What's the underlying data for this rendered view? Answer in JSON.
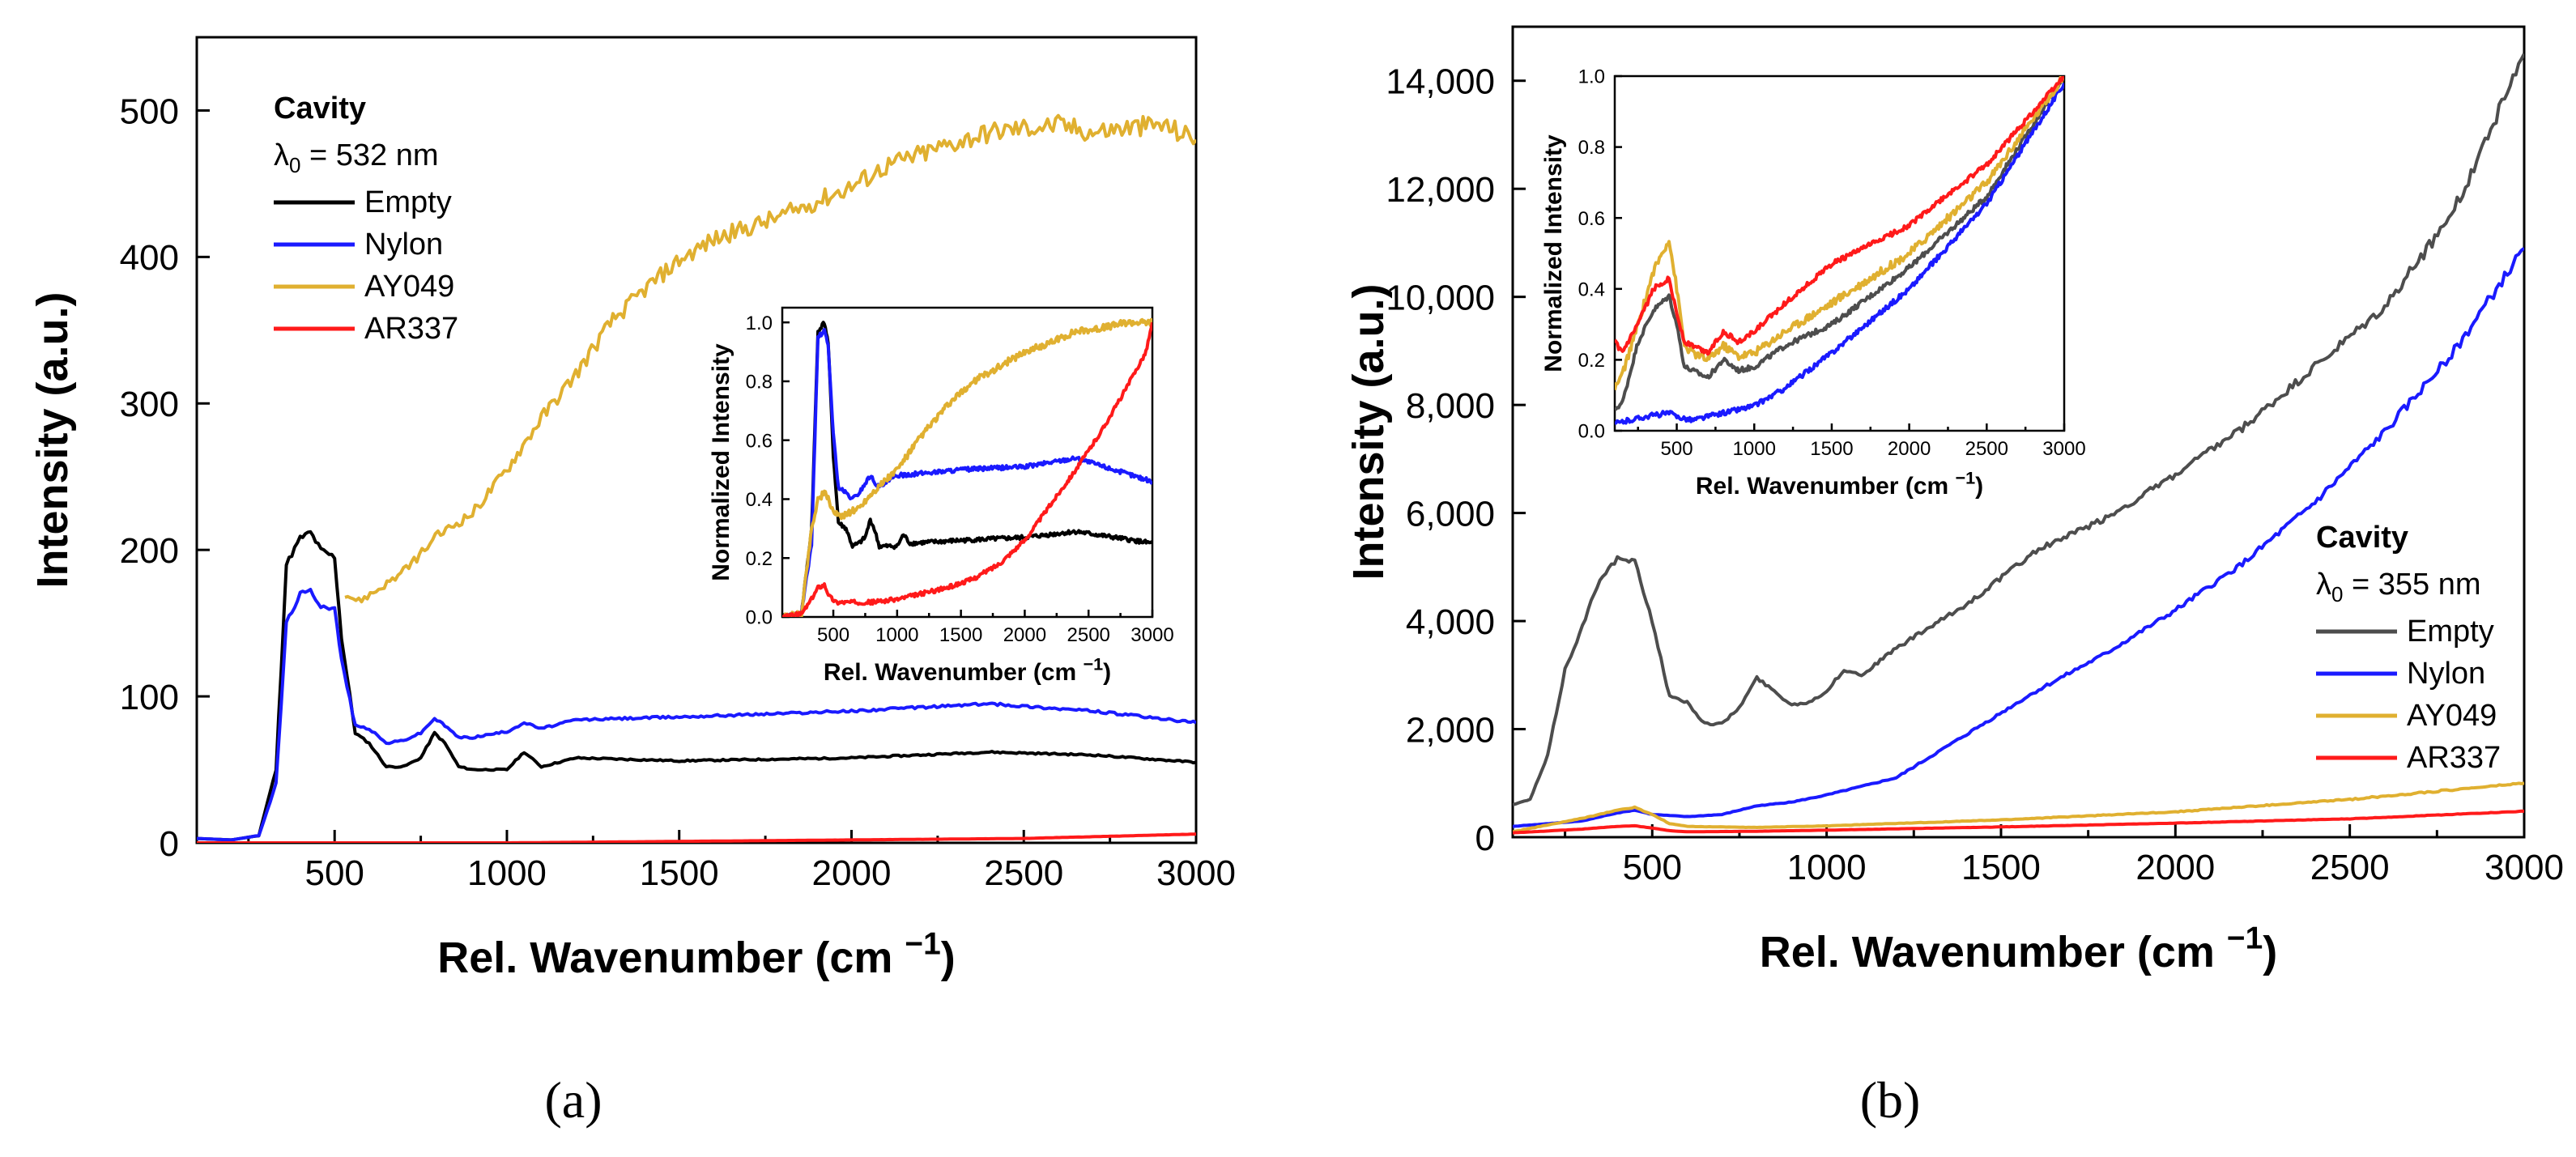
{
  "colors": {
    "empty_a": "#000000",
    "empty_b": "#4d4d4d",
    "nylon": "#1a1aff",
    "ay049": "#e0b030",
    "ar337": "#ff1a1a"
  },
  "chart_data": [
    {
      "panel": "a",
      "caption": "(a)",
      "type": "line",
      "xlabel": "Rel. Wavenumber (cm",
      "xlabel_sup": "−1",
      "xlabel_close": ")",
      "ylabel": "Intensity (a.u.)",
      "xlim": [
        100,
        3000
      ],
      "ylim": [
        0,
        550
      ],
      "xticks": [
        500,
        1000,
        1500,
        2000,
        2500,
        3000
      ],
      "xtick_labels": [
        "500",
        "1000",
        "1500",
        "2000",
        "2500",
        "3000"
      ],
      "yticks": [
        0,
        100,
        200,
        300,
        400,
        500
      ],
      "ytick_labels": [
        "0",
        "100",
        "200",
        "300",
        "400",
        "500"
      ],
      "legend": {
        "position": "top-left",
        "title": "Cavity",
        "subtitle_prefix": "λ",
        "subtitle_sub": "0",
        "subtitle_suffix": " = 532 nm",
        "entries": [
          "Empty",
          "Nylon",
          "AY049",
          "AR337"
        ]
      },
      "series": [
        {
          "name": "Empty",
          "x": [
            100,
            200,
            280,
            330,
            360,
            400,
            430,
            460,
            500,
            520,
            560,
            600,
            650,
            700,
            750,
            790,
            820,
            860,
            900,
            1000,
            1050,
            1100,
            1200,
            1500,
            2000,
            2400,
            2700,
            3000
          ],
          "y": [
            3,
            2,
            5,
            50,
            190,
            208,
            212,
            200,
            195,
            140,
            75,
            68,
            52,
            52,
            58,
            75,
            68,
            52,
            50,
            50,
            62,
            52,
            58,
            56,
            58,
            62,
            60,
            55
          ]
        },
        {
          "name": "Nylon",
          "x": [
            100,
            200,
            280,
            330,
            360,
            400,
            430,
            460,
            500,
            520,
            560,
            600,
            650,
            700,
            750,
            790,
            820,
            860,
            900,
            1000,
            1050,
            1100,
            1200,
            1500,
            2000,
            2400,
            2700,
            3000
          ],
          "y": [
            3,
            2,
            5,
            40,
            150,
            170,
            172,
            162,
            160,
            125,
            80,
            78,
            68,
            70,
            75,
            85,
            80,
            72,
            72,
            76,
            82,
            78,
            84,
            86,
            90,
            95,
            90,
            82
          ]
        },
        {
          "name": "AY049",
          "x": [
            530,
            570,
            620,
            700,
            800,
            900,
            1000,
            1100,
            1200,
            1300,
            1400,
            1500,
            1600,
            1700,
            1800,
            1900,
            2000,
            2100,
            2200,
            2300,
            2400,
            2500,
            2600,
            2700,
            2800,
            2900,
            3000
          ],
          "y": [
            170,
            165,
            172,
            185,
            210,
            225,
            255,
            290,
            320,
            355,
            378,
            398,
            412,
            420,
            428,
            438,
            448,
            462,
            470,
            478,
            485,
            488,
            490,
            485,
            488,
            490,
            480
          ]
        },
        {
          "name": "AR337",
          "x": [
            100,
            500,
            1000,
            1500,
            2000,
            2500,
            3000
          ],
          "y": [
            0,
            0,
            0,
            1,
            2,
            3,
            6
          ]
        }
      ],
      "inset": {
        "type": "line",
        "xlabel": "Rel. Wavenumber (cm",
        "xlabel_sup": "−1",
        "xlabel_close": ")",
        "ylabel": "Normalized Intensity",
        "xlim": [
          100,
          3000
        ],
        "ylim": [
          0,
          1.05
        ],
        "xticks": [
          500,
          1000,
          1500,
          2000,
          2500,
          3000
        ],
        "xtick_labels": [
          "500",
          "1000",
          "1500",
          "2000",
          "2500",
          "3000"
        ],
        "yticks": [
          0.0,
          0.2,
          0.4,
          0.6,
          0.8,
          1.0
        ],
        "ytick_labels": [
          "0.0",
          "0.2",
          "0.4",
          "0.6",
          "0.8",
          "1.0"
        ],
        "series": [
          {
            "name": "Empty",
            "x": [
              100,
              250,
              330,
              380,
              430,
              460,
              500,
              540,
              600,
              650,
              700,
              750,
              790,
              820,
              860,
              1000,
              1050,
              1100,
              1500,
              2000,
              2400,
              2700,
              3000
            ],
            "y": [
              0.0,
              0.01,
              0.3,
              0.97,
              1.0,
              0.93,
              0.55,
              0.32,
              0.3,
              0.24,
              0.25,
              0.27,
              0.33,
              0.3,
              0.24,
              0.24,
              0.28,
              0.25,
              0.26,
              0.27,
              0.29,
              0.27,
              0.25
            ]
          },
          {
            "name": "Nylon",
            "x": [
              100,
              250,
              330,
              380,
              430,
              460,
              500,
              540,
              600,
              650,
              700,
              790,
              820,
              860,
              1000,
              1500,
              2000,
              2400,
              2700,
              3000
            ],
            "y": [
              0.0,
              0.01,
              0.25,
              0.95,
              0.97,
              0.92,
              0.62,
              0.44,
              0.42,
              0.4,
              0.42,
              0.48,
              0.46,
              0.44,
              0.48,
              0.5,
              0.51,
              0.54,
              0.5,
              0.46
            ]
          },
          {
            "name": "AY049",
            "x": [
              100,
              250,
              330,
              380,
              430,
              460,
              500,
              540,
              600,
              700,
              800,
              900,
              1000,
              1200,
              1400,
              1600,
              1800,
              2000,
              2200,
              2400,
              2600,
              2800,
              3000
            ],
            "y": [
              0.0,
              0.01,
              0.3,
              0.4,
              0.42,
              0.4,
              0.36,
              0.34,
              0.35,
              0.37,
              0.42,
              0.46,
              0.5,
              0.62,
              0.72,
              0.8,
              0.85,
              0.9,
              0.93,
              0.97,
              0.98,
              1.0,
              1.0
            ]
          },
          {
            "name": "AR337",
            "x": [
              100,
              250,
              330,
              380,
              430,
              470,
              520,
              600,
              800,
              1000,
              1200,
              1400,
              1600,
              1800,
              2000,
              2200,
              2400,
              2600,
              2800,
              2950,
              3000
            ],
            "y": [
              0.0,
              0.01,
              0.06,
              0.1,
              0.11,
              0.07,
              0.05,
              0.05,
              0.05,
              0.06,
              0.08,
              0.1,
              0.13,
              0.18,
              0.26,
              0.38,
              0.5,
              0.63,
              0.78,
              0.9,
              1.0
            ]
          }
        ]
      }
    },
    {
      "panel": "b",
      "caption": "(b)",
      "type": "line",
      "xlabel": "Rel. Wavenumber (cm",
      "xlabel_sup": "−1",
      "xlabel_close": ")",
      "ylabel": "Intensity (a.u.)",
      "xlim": [
        100,
        3000
      ],
      "ylim": [
        0,
        15000
      ],
      "xticks": [
        500,
        1000,
        1500,
        2000,
        2500,
        3000
      ],
      "xtick_labels": [
        "500",
        "1000",
        "1500",
        "2000",
        "2500",
        "3000"
      ],
      "yticks": [
        0,
        2000,
        4000,
        6000,
        8000,
        10000,
        12000,
        14000
      ],
      "ytick_labels": [
        "0",
        "2,000",
        "4,000",
        "6,000",
        "8,000",
        "10,000",
        "12,000",
        "14,000"
      ],
      "legend": {
        "position": "bottom-right",
        "title": "Cavity",
        "subtitle_prefix": "λ",
        "subtitle_sub": "0",
        "subtitle_suffix": " = 355 nm",
        "entries": [
          "Empty",
          "Nylon",
          "AY049",
          "AR337"
        ]
      },
      "series": [
        {
          "name": "Empty",
          "x": [
            100,
            150,
            200,
            250,
            300,
            350,
            400,
            450,
            500,
            550,
            600,
            650,
            700,
            750,
            800,
            850,
            900,
            950,
            1000,
            1050,
            1100,
            1200,
            1400,
            1600,
            1800,
            2000,
            2200,
            2400,
            2600,
            2800,
            3000
          ],
          "y": [
            600,
            700,
            1500,
            3100,
            3900,
            4800,
            5150,
            5100,
            4000,
            2600,
            2500,
            2100,
            2100,
            2400,
            2950,
            2700,
            2450,
            2500,
            2700,
            3100,
            3000,
            3500,
            4300,
            5300,
            5900,
            6700,
            7600,
            8700,
            9800,
            11600,
            14500
          ]
        },
        {
          "name": "Nylon",
          "x": [
            100,
            300,
            400,
            450,
            500,
            550,
            600,
            700,
            800,
            900,
            1000,
            1200,
            1400,
            1600,
            1800,
            2000,
            2200,
            2400,
            2600,
            2800,
            3000
          ],
          "y": [
            200,
            300,
            450,
            500,
            420,
            400,
            380,
            420,
            580,
            650,
            780,
            1100,
            1900,
            2700,
            3400,
            4200,
            5100,
            6200,
            7500,
            9000,
            10900
          ]
        },
        {
          "name": "AY049",
          "x": [
            100,
            300,
            400,
            450,
            500,
            550,
            600,
            800,
            1000,
            1500,
            2000,
            2500,
            3000
          ],
          "y": [
            100,
            350,
            500,
            550,
            420,
            250,
            200,
            180,
            210,
            320,
            470,
            700,
            1000
          ]
        },
        {
          "name": "AR337",
          "x": [
            100,
            300,
            400,
            450,
            500,
            550,
            600,
            800,
            1000,
            1500,
            2000,
            2500,
            3000
          ],
          "y": [
            80,
            150,
            200,
            210,
            170,
            120,
            100,
            110,
            130,
            190,
            260,
            340,
            480
          ]
        }
      ],
      "inset": {
        "type": "line",
        "xlabel": "Rel. Wavenumber (cm",
        "xlabel_sup": "−1",
        "xlabel_close": ")",
        "ylabel": "Normalized Intensity",
        "xlim": [
          100,
          3000
        ],
        "ylim": [
          0,
          1.0
        ],
        "xticks": [
          500,
          1000,
          1500,
          2000,
          2500,
          3000
        ],
        "xtick_labels": [
          "500",
          "1000",
          "1500",
          "2000",
          "2500",
          "3000"
        ],
        "yticks": [
          0.0,
          0.2,
          0.4,
          0.6,
          0.8,
          1.0
        ],
        "ytick_labels": [
          "0.0",
          "0.2",
          "0.4",
          "0.6",
          "0.8",
          "1.0"
        ],
        "series": [
          {
            "name": "Empty",
            "x": [
              100,
              150,
              250,
              350,
              450,
              500,
              550,
              600,
              700,
              800,
              900,
              1000,
              1200,
              1500,
              2000,
              2500,
              3000
            ],
            "y": [
              0.06,
              0.08,
              0.25,
              0.34,
              0.38,
              0.3,
              0.18,
              0.17,
              0.15,
              0.2,
              0.17,
              0.18,
              0.24,
              0.3,
              0.46,
              0.66,
              1.0
            ]
          },
          {
            "name": "Nylon",
            "x": [
              100,
              300,
              450,
              500,
              600,
              800,
              1000,
              1200,
              1500,
              2000,
              2500,
              3000
            ],
            "y": [
              0.02,
              0.04,
              0.05,
              0.04,
              0.03,
              0.05,
              0.07,
              0.12,
              0.22,
              0.4,
              0.64,
              0.98
            ]
          },
          {
            "name": "AY049",
            "x": [
              100,
              150,
              250,
              350,
              450,
              500,
              550,
              600,
              700,
              800,
              900,
              1000,
              1200,
              1500,
              2000,
              2500,
              3000
            ],
            "y": [
              0.12,
              0.16,
              0.3,
              0.45,
              0.54,
              0.4,
              0.24,
              0.22,
              0.2,
              0.24,
              0.21,
              0.22,
              0.28,
              0.36,
              0.5,
              0.7,
              1.0
            ]
          },
          {
            "name": "AR337",
            "x": [
              100,
              150,
              250,
              350,
              450,
              500,
              550,
              600,
              700,
              800,
              900,
              1000,
              1200,
              1500,
              2000,
              2500,
              3000
            ],
            "y": [
              0.25,
              0.22,
              0.3,
              0.4,
              0.43,
              0.33,
              0.25,
              0.24,
              0.22,
              0.28,
              0.25,
              0.28,
              0.36,
              0.47,
              0.58,
              0.75,
              1.0
            ]
          }
        ]
      }
    }
  ]
}
